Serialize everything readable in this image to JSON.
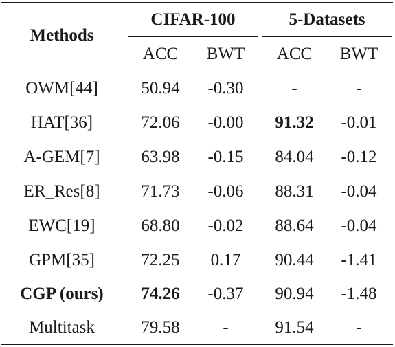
{
  "table": {
    "header": {
      "methods_label": "Methods",
      "groups": [
        "CIFAR-100",
        "5-Datasets"
      ],
      "subcols": [
        "ACC",
        "BWT",
        "ACC",
        "BWT"
      ]
    },
    "rows": [
      {
        "method": "OWM[44]",
        "values": [
          "50.94",
          "-0.30",
          "-",
          "-"
        ],
        "bold": []
      },
      {
        "method": "HAT[36]",
        "values": [
          "72.06",
          "-0.00",
          "91.32",
          "-0.01"
        ],
        "bold": [
          2
        ]
      },
      {
        "method": "A-GEM[7]",
        "values": [
          "63.98",
          "-0.15",
          "84.04",
          "-0.12"
        ],
        "bold": []
      },
      {
        "method": "ER_Res[8]",
        "values": [
          "71.73",
          "-0.06",
          "88.31",
          "-0.04"
        ],
        "bold": []
      },
      {
        "method": "EWC[19]",
        "values": [
          "68.80",
          "-0.02",
          "88.64",
          "-0.04"
        ],
        "bold": []
      },
      {
        "method": "GPM[35]",
        "values": [
          "72.25",
          "0.17",
          "90.44",
          "-1.41"
        ],
        "bold": []
      },
      {
        "method": "CGP (ours)",
        "values": [
          "74.26",
          "-0.37",
          "90.94",
          "-1.48"
        ],
        "bold": [
          0
        ],
        "method_bold": true
      },
      {
        "method": "Multitask",
        "values": [
          "79.58",
          "-",
          "91.54",
          "-"
        ],
        "bold": []
      }
    ]
  }
}
